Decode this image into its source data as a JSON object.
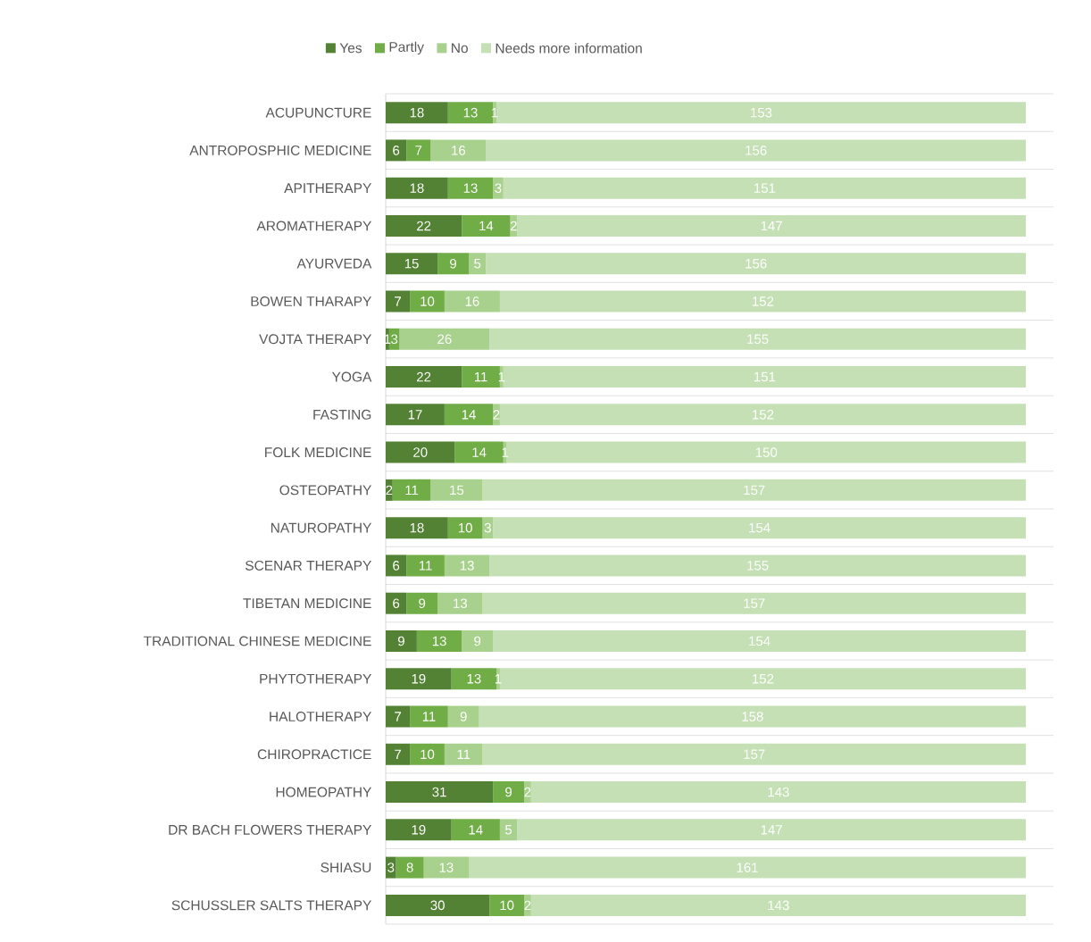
{
  "chart_data": {
    "type": "bar",
    "orientation": "horizontal",
    "stacked": true,
    "data_labels": true,
    "grid": "y",
    "legend": "top",
    "tick_labels": "y",
    "xlim": [
      0,
      193
    ],
    "categories": [
      "ACUPUNCTURE",
      "ANTROPOSPHIC MEDICINE",
      "APITHERAPY",
      "AROMATHERAPY",
      "AYURVEDA",
      "BOWEN THARAPY",
      "VOJTA THERAPY",
      "YOGA",
      "FASTING",
      "FOLK MEDICINE",
      "OSTEOPATHY",
      "NATUROPATHY",
      "SCENAR THERAPY",
      "TIBETAN MEDICINE",
      "TRADITIONAL CHINESE MEDICINE",
      "PHYTOTHERAPY",
      "HALOTHERAPY",
      "CHIROPRACTICE",
      "HOMEOPATHY",
      "DR BACH FLOWERS THERAPY",
      "SHIASU",
      "SCHUSSLER SALTS THERAPY"
    ],
    "series": [
      {
        "name": "Yes",
        "color": "#548235",
        "values": [
          18,
          6,
          18,
          22,
          15,
          7,
          1,
          22,
          17,
          20,
          2,
          18,
          6,
          6,
          9,
          19,
          7,
          7,
          31,
          19,
          3,
          30
        ]
      },
      {
        "name": "Partly",
        "color": "#70ad47",
        "values": [
          13,
          7,
          13,
          14,
          9,
          10,
          3,
          11,
          14,
          14,
          11,
          10,
          11,
          9,
          13,
          13,
          11,
          10,
          9,
          14,
          8,
          10
        ]
      },
      {
        "name": "No",
        "color": "#a9d18e",
        "values": [
          1,
          16,
          3,
          2,
          5,
          16,
          26,
          1,
          2,
          1,
          15,
          3,
          13,
          13,
          9,
          1,
          9,
          11,
          2,
          5,
          13,
          2
        ]
      },
      {
        "name": "Needs more information",
        "color": "#c5e0b4",
        "values": [
          153,
          156,
          151,
          147,
          156,
          152,
          155,
          151,
          152,
          150,
          157,
          154,
          155,
          157,
          154,
          152,
          158,
          157,
          143,
          147,
          161,
          143
        ]
      }
    ]
  }
}
